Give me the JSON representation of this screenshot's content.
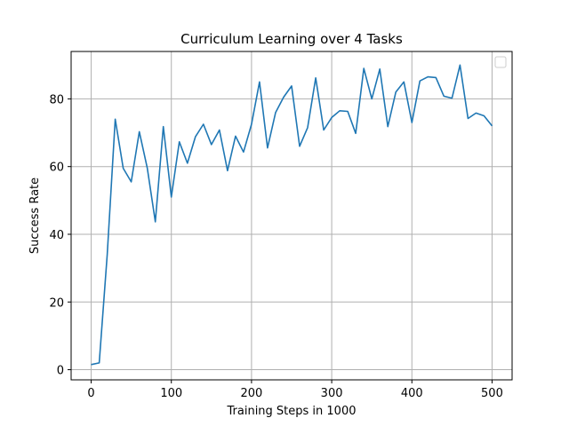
{
  "chart_data": {
    "type": "line",
    "title": "Curriculum Learning over 4 Tasks",
    "xlabel": "Training Steps in 1000",
    "ylabel": "Success Rate",
    "xlim": [
      -25,
      525
    ],
    "ylim": [
      -3,
      94
    ],
    "xticks": [
      0,
      100,
      200,
      300,
      400,
      500
    ],
    "yticks": [
      0,
      20,
      40,
      60,
      80
    ],
    "grid": true,
    "legend": {
      "placement": "top-right",
      "entries": []
    },
    "colors": {
      "line": "#1f77b4",
      "grid": "#b0b0b0",
      "axes": "#000000"
    },
    "series": [
      {
        "x": [
          0,
          10,
          20,
          30,
          40,
          50,
          60,
          70,
          80,
          90,
          100,
          110,
          120,
          130,
          140,
          150,
          160,
          170,
          180,
          190,
          200,
          210,
          220,
          230,
          240,
          250,
          260,
          270,
          280,
          290,
          300,
          310,
          320,
          330,
          340,
          350,
          360,
          370,
          380,
          390,
          400,
          410,
          420,
          430,
          440,
          450,
          460,
          470,
          480,
          490,
          500
        ],
        "values": [
          1.5,
          2,
          34,
          74,
          59.5,
          55.5,
          70.3,
          59.5,
          43.7,
          71.8,
          51,
          67.3,
          61,
          68.8,
          72.5,
          66.5,
          70.8,
          58.8,
          69,
          64.3,
          72.5,
          85,
          65.5,
          76,
          80.5,
          83.8,
          66,
          71.5,
          86.2,
          70.8,
          74.5,
          76.5,
          76.3,
          69.8,
          89,
          80,
          88.8,
          71.8,
          82,
          85,
          73,
          85.3,
          86.5,
          86.3,
          80.8,
          80.2,
          90,
          74.2,
          75.8,
          75,
          72
        ]
      }
    ]
  }
}
